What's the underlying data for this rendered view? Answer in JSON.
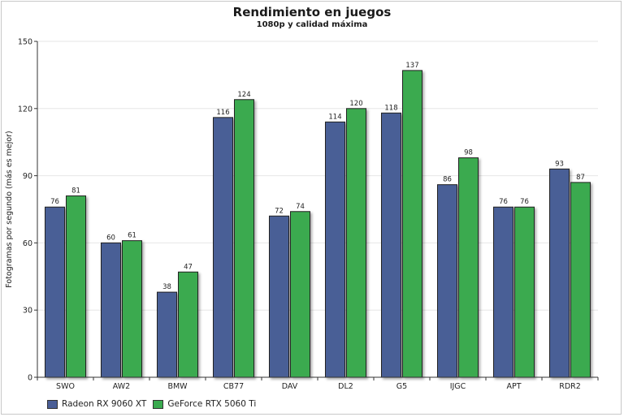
{
  "chart_data": {
    "type": "bar",
    "title": "Rendimiento en juegos",
    "subtitle": "1080p y calidad máxima",
    "xlabel": "",
    "ylabel": "Fotogramas por segundo (más es mejor)",
    "ylim": [
      0,
      150
    ],
    "yticks": [
      0,
      30,
      60,
      90,
      120,
      150
    ],
    "grid": true,
    "legend_position": "bottom-left",
    "categories": [
      "SWO",
      "AW2",
      "BMW",
      "CB77",
      "DAV",
      "DL2",
      "G5",
      "IJGC",
      "APT",
      "RDR2"
    ],
    "series": [
      {
        "name": "Radeon RX 9060 XT",
        "color": "#4a5e96",
        "values": [
          76,
          60,
          38,
          116,
          72,
          114,
          118,
          86,
          76,
          93
        ]
      },
      {
        "name": "GeForce RTX 5060 Ti",
        "color": "#3aaa4f",
        "values": [
          81,
          61,
          47,
          124,
          74,
          120,
          137,
          98,
          76,
          87
        ]
      }
    ]
  }
}
